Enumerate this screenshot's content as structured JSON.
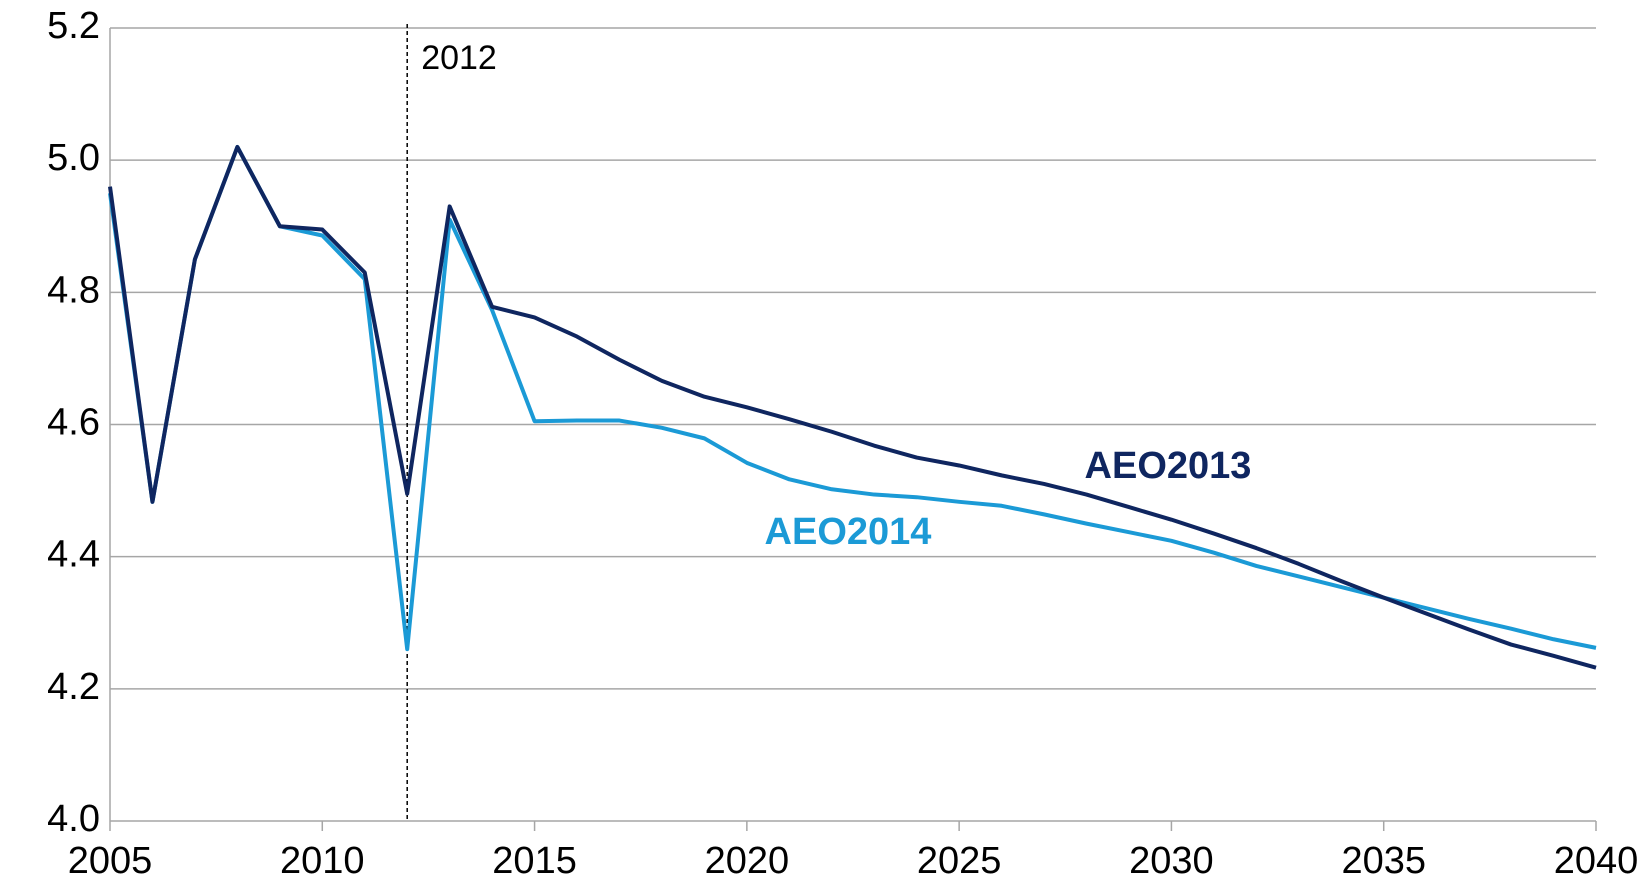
{
  "chart_data": {
    "type": "line",
    "x": [
      2005,
      2006,
      2007,
      2008,
      2009,
      2010,
      2011,
      2012,
      2013,
      2014,
      2015,
      2016,
      2017,
      2018,
      2019,
      2020,
      2021,
      2022,
      2023,
      2024,
      2025,
      2026,
      2027,
      2028,
      2029,
      2030,
      2031,
      2032,
      2033,
      2034,
      2035,
      2036,
      2037,
      2038,
      2039,
      2040
    ],
    "series": [
      {
        "name": "AEO2013",
        "color": "#0f2660",
        "values": [
          4.96,
          4.483,
          4.85,
          5.02,
          4.9,
          4.895,
          4.83,
          4.495,
          4.93,
          4.778,
          4.762,
          4.733,
          4.698,
          4.666,
          4.642,
          4.626,
          4.608,
          4.589,
          4.568,
          4.55,
          4.538,
          4.523,
          4.51,
          4.494,
          4.475,
          4.456,
          4.435,
          4.413,
          4.389,
          4.363,
          4.338,
          4.314,
          4.29,
          4.267,
          4.25,
          4.232
        ]
      },
      {
        "name": "AEO2014",
        "color": "#1b9ad6",
        "values": [
          4.95,
          4.483,
          4.85,
          5.02,
          4.9,
          4.886,
          4.82,
          4.26,
          4.91,
          4.773,
          4.605,
          4.606,
          4.606,
          4.595,
          4.579,
          4.542,
          4.517,
          4.502,
          4.494,
          4.49,
          4.483,
          4.477,
          4.464,
          4.45,
          4.437,
          4.424,
          4.406,
          4.386,
          4.37,
          4.354,
          4.338,
          4.322,
          4.306,
          4.291,
          4.275,
          4.262
        ]
      }
    ],
    "xlim": [
      2005,
      2040
    ],
    "xticks": [
      2005,
      2010,
      2015,
      2020,
      2025,
      2030,
      2035,
      2040
    ],
    "ylim": [
      4,
      5.2
    ],
    "yticks": [
      {
        "value": 4,
        "label": "4.0"
      },
      4.2,
      4.4,
      4.6,
      4.8,
      {
        "value": 5,
        "label": "5.0"
      },
      5.2
    ],
    "grid": true,
    "annotations": [
      {
        "text": "2012",
        "x": 2012
      }
    ]
  }
}
